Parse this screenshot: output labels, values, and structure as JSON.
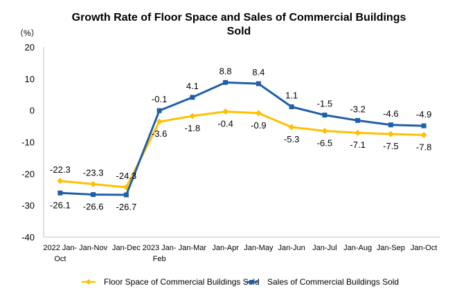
{
  "chart_data": {
    "type": "line",
    "title": "Growth Rate of Floor Space and Sales of Commercial Buildings Sold",
    "unit_label": "（%）",
    "categories": [
      [
        "2022 Jan-",
        "Oct"
      ],
      [
        "Jan-Nov"
      ],
      [
        "Jan-Dec"
      ],
      [
        "2023 Jan-",
        "Feb"
      ],
      [
        "Jan-Mar"
      ],
      [
        "Jan-Apr"
      ],
      [
        "Jan-May"
      ],
      [
        "Jan-Jun"
      ],
      [
        "Jan-Jul"
      ],
      [
        "Jan-Aug"
      ],
      [
        "Jan-Sep"
      ],
      [
        "Jan-Oct"
      ]
    ],
    "ylim": [
      -40,
      20
    ],
    "yticks": [
      20,
      10,
      0,
      -10,
      -20,
      -30,
      -40
    ],
    "grid": false,
    "legend_position": "bottom",
    "series": [
      {
        "name": "Floor Space of Commercial Buildings Sold",
        "color": "#FFC000",
        "marker": "diamond",
        "values": [
          -22.3,
          -23.3,
          -24.3,
          -3.6,
          -1.8,
          -0.4,
          -0.9,
          -5.3,
          -6.5,
          -7.1,
          -7.5,
          -7.8
        ],
        "labels": [
          "-22.3",
          "-23.3",
          "-24.3",
          "-3.6",
          "-1.8",
          "-0.4",
          "-0.9",
          "-5.3",
          "-6.5",
          "-7.1",
          "-7.5",
          "-7.8"
        ]
      },
      {
        "name": "Sales of Commercial Buildings Sold",
        "color": "#1F5FA8",
        "marker": "square",
        "values": [
          -26.1,
          -26.6,
          -26.7,
          -0.1,
          4.1,
          8.8,
          8.4,
          1.1,
          -1.5,
          -3.2,
          -4.6,
          -4.9
        ],
        "labels": [
          "-26.1",
          "-26.6",
          "-26.7",
          "-0.1",
          "4.1",
          "8.8",
          "8.4",
          "1.1",
          "-1.5",
          "-3.2",
          "-4.6",
          "-4.9"
        ]
      }
    ]
  }
}
